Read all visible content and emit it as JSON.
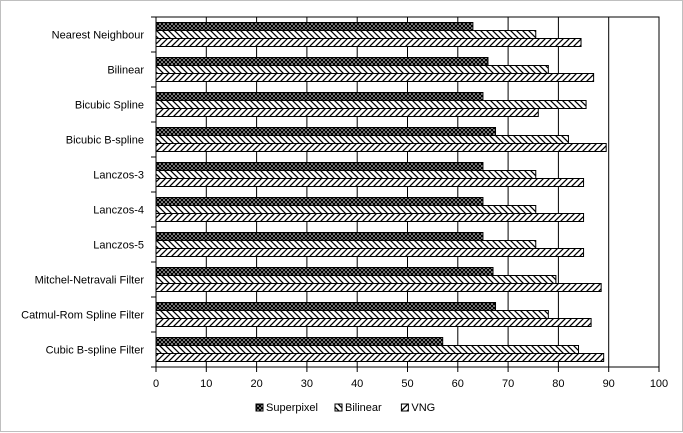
{
  "chart_data": {
    "type": "bar",
    "orientation": "horizontal",
    "categories": [
      "Nearest Neighbour",
      "Bilinear",
      "Bicubic Spline",
      "Bicubic B-spline",
      "Lanczos-3",
      "Lanczos-4",
      "Lanczos-5",
      "Mitchel-Netravali Filter",
      "Catmul-Rom Spline Filter",
      "Cubic B-spline Filter"
    ],
    "series": [
      {
        "name": "Superpixel",
        "values": [
          63,
          66,
          65,
          67.5,
          65,
          65,
          65,
          67,
          67.5,
          57
        ],
        "pattern": "dots"
      },
      {
        "name": "Bilinear",
        "values": [
          75.5,
          78,
          85.5,
          82,
          75.5,
          75.5,
          75.5,
          79.5,
          78,
          84
        ],
        "pattern": "backslash"
      },
      {
        "name": "VNG",
        "values": [
          84.5,
          87,
          76,
          89.5,
          85,
          85,
          85,
          88.5,
          86.5,
          89
        ],
        "pattern": "slash"
      }
    ],
    "xlim": [
      0,
      100
    ],
    "x_ticks": [
      "0",
      "10",
      "20",
      "30",
      "40",
      "50",
      "60",
      "70",
      "80",
      "90",
      "100"
    ],
    "grid": "vertical major",
    "legend_position": "bottom",
    "title": "",
    "xlabel": "",
    "ylabel": ""
  }
}
